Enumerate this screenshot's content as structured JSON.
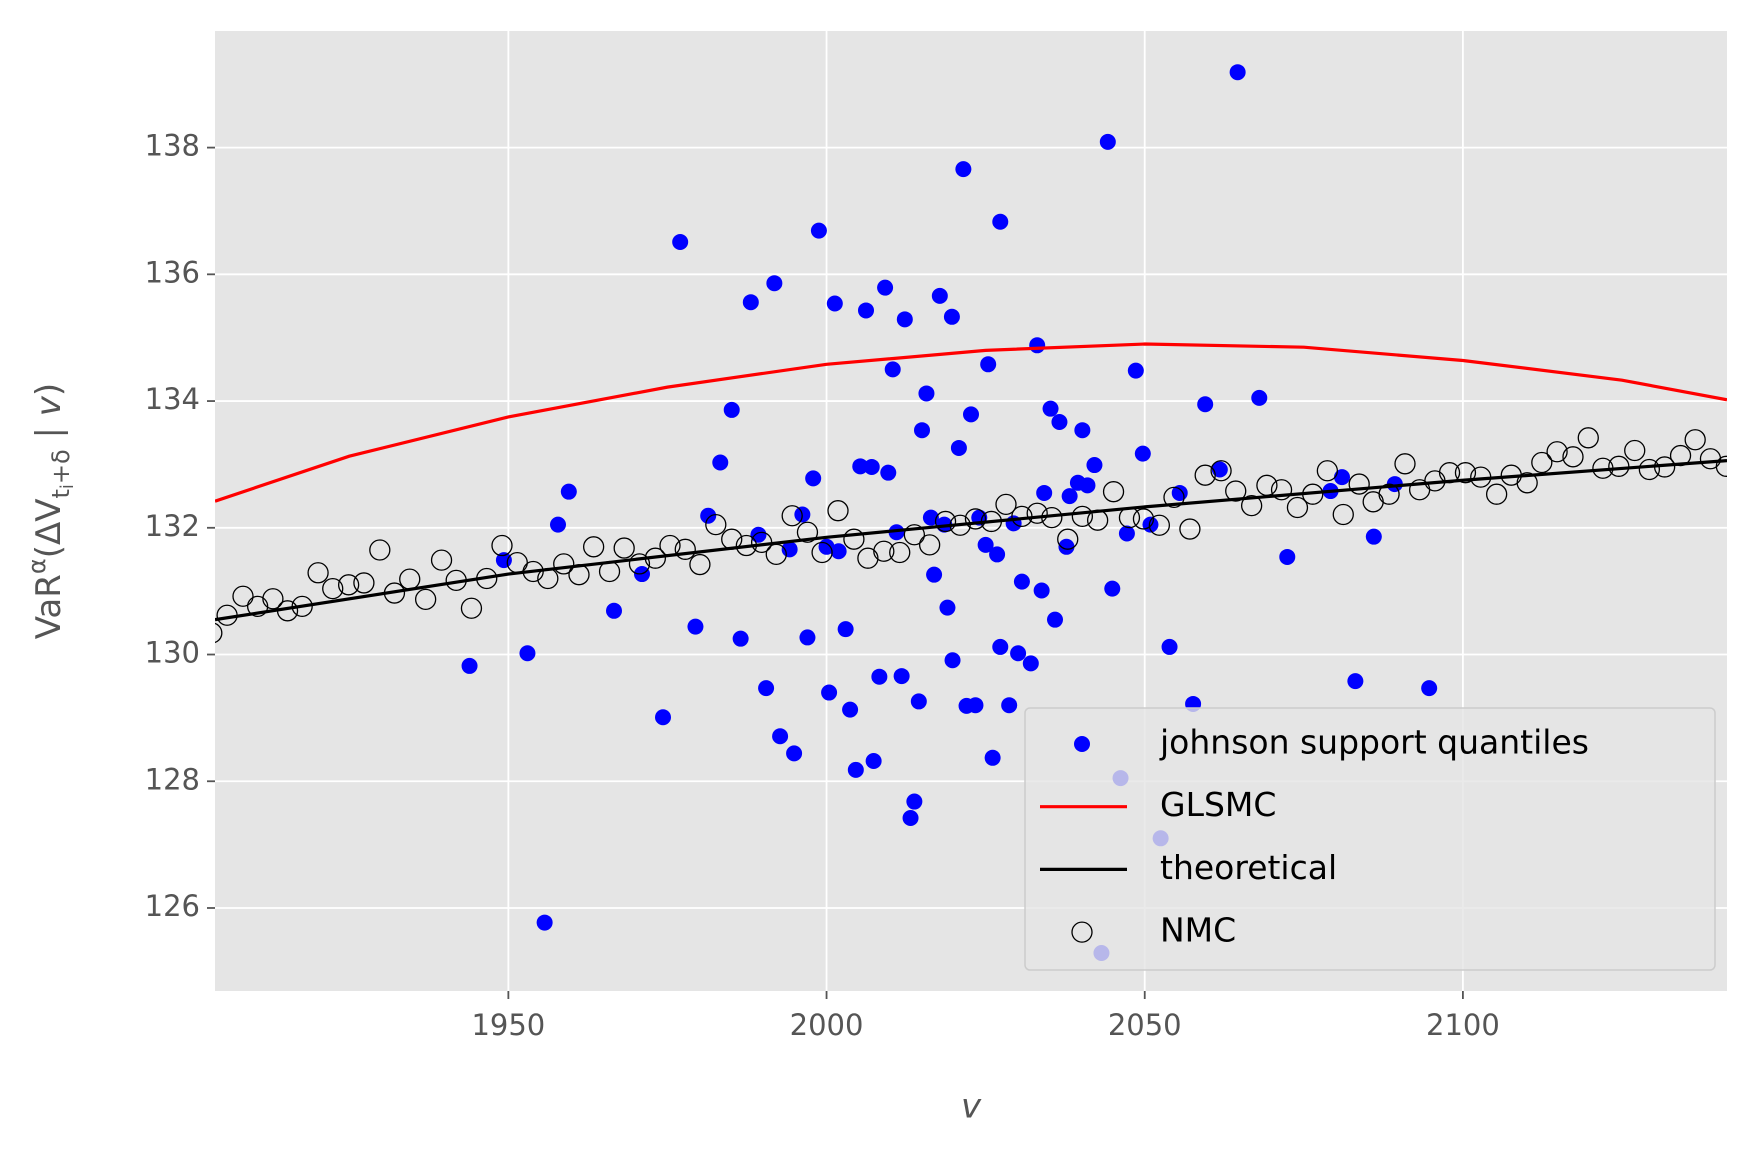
{
  "chart_data": {
    "type": "scatter",
    "xlabel": "v",
    "ylabel": [
      "VaR",
      "α",
      "(ΔV",
      "t",
      "i",
      "+δ",
      " | ",
      "v",
      ")"
    ],
    "xlim": [
      1903.9,
      2141.5
    ],
    "ylim": [
      124.69,
      139.84
    ],
    "xticks": [
      1950,
      2000,
      2050,
      2100
    ],
    "yticks": [
      126,
      128,
      130,
      132,
      134,
      136,
      138
    ],
    "grid": true,
    "legend": "lower right",
    "series": [
      {
        "name": "johnson support quantiles",
        "type": "scatter",
        "color": "#0000ff",
        "x": [
          2064.6,
          2044.2,
          2021.5,
          2027.3,
          1998.8,
          1977.0,
          1991.8,
          1988.1,
          2001.3,
          2006.2,
          2009.2,
          2012.3,
          2017.8,
          2019.7,
          2033.1,
          2025.4,
          2010.4,
          2048.6,
          2015.7,
          2068.0,
          1985.1,
          2059.5,
          2035.2,
          2022.7,
          2036.6,
          2040.2,
          2015.0,
          2020.8,
          2049.7,
          1983.3,
          2042.1,
          2005.3,
          2007.1,
          2061.8,
          2009.7,
          1997.9,
          2041.0,
          2039.5,
          2089.3,
          1959.5,
          2034.2,
          2038.2,
          2079.2,
          2081.0,
          2055.5,
          1996.2,
          1981.4,
          1957.8,
          2016.4,
          2018.5,
          2024.0,
          2029.4,
          2050.9,
          2047.2,
          1989.3,
          2011.0,
          2086.0,
          2072.4,
          1994.2,
          2000.0,
          2001.9,
          2025.0,
          2026.8,
          2037.7,
          1949.3,
          1971.0,
          2016.9,
          2030.7,
          2033.8,
          2044.9,
          2019.0,
          1966.6,
          2035.9,
          2003.0,
          1979.4,
          1986.5,
          1997.0,
          2053.9,
          2027.3,
          2030.1,
          2032.1,
          1953.0,
          2019.8,
          1943.9,
          2008.3,
          2011.8,
          1990.5,
          2083.1,
          2094.7,
          2000.4,
          2014.5,
          2023.4,
          2022.0,
          2028.7,
          2057.6,
          2003.7,
          1974.3,
          1992.7,
          1994.9,
          2026.1,
          2007.4,
          2004.6,
          2046.2,
          2013.8,
          2013.2,
          2052.5,
          1955.7,
          2043.2
        ],
        "values": [
          139.19,
          138.09,
          137.66,
          136.83,
          136.69,
          136.51,
          135.86,
          135.56,
          135.54,
          135.43,
          135.79,
          135.29,
          135.66,
          135.33,
          134.88,
          134.58,
          134.5,
          134.48,
          134.12,
          134.05,
          133.86,
          133.95,
          133.88,
          133.79,
          133.67,
          133.54,
          133.54,
          133.26,
          133.17,
          133.03,
          132.99,
          132.97,
          132.96,
          132.92,
          132.87,
          132.78,
          132.67,
          132.71,
          132.69,
          132.57,
          132.55,
          132.5,
          132.58,
          132.8,
          132.55,
          132.21,
          132.19,
          132.05,
          132.16,
          132.05,
          132.16,
          132.07,
          132.05,
          131.91,
          131.89,
          131.93,
          131.86,
          131.54,
          131.66,
          131.7,
          131.63,
          131.73,
          131.58,
          131.7,
          131.49,
          131.27,
          131.26,
          131.15,
          131.01,
          131.04,
          130.74,
          130.69,
          130.55,
          130.4,
          130.44,
          130.25,
          130.27,
          130.12,
          130.12,
          130.02,
          129.86,
          130.02,
          129.91,
          129.82,
          129.65,
          129.66,
          129.47,
          129.58,
          129.47,
          129.4,
          129.26,
          129.2,
          129.19,
          129.2,
          129.22,
          129.13,
          129.01,
          128.71,
          128.44,
          128.37,
          128.32,
          128.18,
          128.05,
          127.68,
          127.42,
          127.1,
          125.77,
          125.29
        ]
      },
      {
        "name": "GLSMC",
        "type": "line",
        "color": "#ff0000",
        "x": [
          1903.9,
          1925,
          1950,
          1975,
          2000,
          2025,
          2050,
          2075,
          2100,
          2125,
          2141.5
        ],
        "values": [
          132.42,
          133.13,
          133.75,
          134.22,
          134.58,
          134.8,
          134.9,
          134.85,
          134.64,
          134.33,
          134.02
        ]
      },
      {
        "name": "theoretical",
        "type": "line",
        "color": "#000000",
        "x": [
          1903.9,
          1950,
          2000,
          2050,
          2100,
          2141.5
        ],
        "values": [
          130.55,
          131.27,
          131.85,
          132.33,
          132.75,
          133.06
        ]
      },
      {
        "name": "NMC",
        "type": "scatter",
        "color": "#000000",
        "hollow": true,
        "x": [
          1903.4,
          1905.8,
          1908.3,
          1910.6,
          1913.0,
          1915.3,
          1917.6,
          1920.1,
          1922.4,
          1924.9,
          1927.3,
          1929.8,
          1932.1,
          1934.5,
          1937.0,
          1939.5,
          1941.8,
          1944.2,
          1946.6,
          1949.0,
          1951.4,
          1953.9,
          1956.2,
          1958.7,
          1961.1,
          1963.4,
          1965.9,
          1968.2,
          1970.6,
          1973.1,
          1975.4,
          1977.8,
          1980.1,
          1982.6,
          1985.1,
          1987.4,
          1989.8,
          1992.1,
          1994.6,
          1997.0,
          1999.3,
          2001.8,
          2004.3,
          2006.5,
          2009.0,
          2011.5,
          2013.8,
          2016.2,
          2018.7,
          2021.0,
          2023.4,
          2025.9,
          2028.2,
          2030.7,
          2033.1,
          2035.4,
          2037.9,
          2040.2,
          2042.6,
          2045.1,
          2047.6,
          2049.8,
          2052.3,
          2054.6,
          2057.1,
          2059.5,
          2062.0,
          2064.3,
          2066.8,
          2069.2,
          2071.5,
          2074.0,
          2076.4,
          2078.7,
          2081.2,
          2083.7,
          2085.9,
          2088.4,
          2090.9,
          2093.2,
          2095.6,
          2097.9,
          2100.4,
          2102.8,
          2105.3,
          2107.6,
          2110.1,
          2112.4,
          2114.8,
          2117.3,
          2119.7,
          2122.0,
          2124.5,
          2127.0,
          2129.3,
          2131.7,
          2134.2,
          2136.5,
          2138.9,
          2141.4
        ],
        "values": [
          130.34,
          130.62,
          130.92,
          130.76,
          130.88,
          130.69,
          130.76,
          131.29,
          131.04,
          131.1,
          131.13,
          131.65,
          130.97,
          131.19,
          130.87,
          131.49,
          131.17,
          130.73,
          131.2,
          131.72,
          131.45,
          131.31,
          131.2,
          131.43,
          131.26,
          131.7,
          131.31,
          131.68,
          131.43,
          131.52,
          131.72,
          131.66,
          131.42,
          132.05,
          131.82,
          131.72,
          131.77,
          131.58,
          132.19,
          131.93,
          131.61,
          132.27,
          131.82,
          131.52,
          131.63,
          131.61,
          131.89,
          131.73,
          132.1,
          132.04,
          132.14,
          132.1,
          132.37,
          132.18,
          132.23,
          132.16,
          131.82,
          132.18,
          132.12,
          132.57,
          132.16,
          132.14,
          132.04,
          132.48,
          131.98,
          132.83,
          132.9,
          132.58,
          132.35,
          132.67,
          132.6,
          132.32,
          132.53,
          132.9,
          132.21,
          132.69,
          132.41,
          132.53,
          133.01,
          132.6,
          132.74,
          132.87,
          132.87,
          132.8,
          132.53,
          132.83,
          132.71,
          133.03,
          133.2,
          133.12,
          133.42,
          132.94,
          132.97,
          133.22,
          132.92,
          132.96,
          133.14,
          133.39,
          133.09,
          132.97
        ]
      }
    ]
  }
}
